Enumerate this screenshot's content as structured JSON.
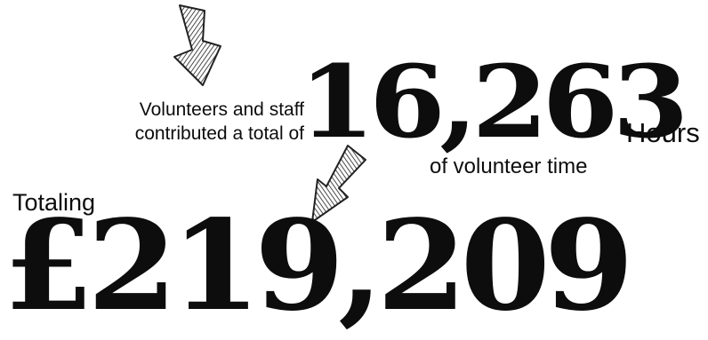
{
  "hours_block": {
    "intro_line1": "Volunteers and staff",
    "intro_line2": "contributed a total of",
    "total_hours": "16,263",
    "unit": "Hours",
    "description": "of volunteer time"
  },
  "value_block": {
    "label": "Totaling",
    "amount": "£219,209"
  },
  "icons": {
    "top_arrow": "down-right-hatched-arrow-icon",
    "middle_arrow": "down-left-hatched-arrow-icon"
  },
  "colors": {
    "text": "#0d0d0d",
    "background": "#ffffff",
    "arrow_fill": "#8a8a8a"
  }
}
